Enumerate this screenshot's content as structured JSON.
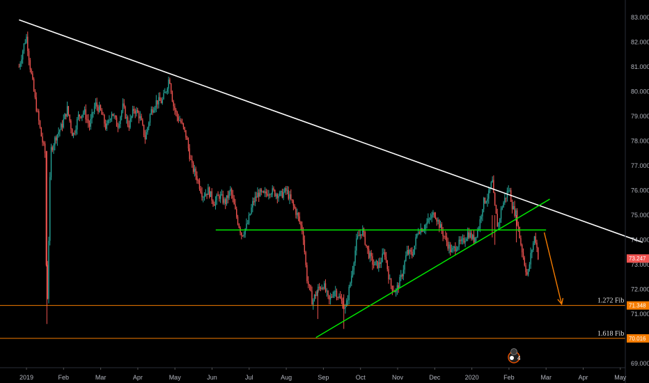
{
  "chart_data": {
    "type": "candlestick",
    "x_labels": [
      "2019",
      "Feb",
      "Mar",
      "Apr",
      "May",
      "Jun",
      "Jul",
      "Aug",
      "Sep",
      "Oct",
      "Nov",
      "Dec",
      "2020",
      "Feb",
      "Mar",
      "Apr",
      "May"
    ],
    "y_ticks": [
      "83.000",
      "82.000",
      "81.000",
      "80.000",
      "79.000",
      "78.000",
      "77.000",
      "76.000",
      "75.000",
      "74.000",
      "73.000",
      "72.000",
      "71.000",
      "70.000",
      "69.000"
    ],
    "y_range": [
      68.8,
      83.3
    ],
    "x_range": [
      0,
      16.6
    ],
    "price_path": [
      [
        -0.2,
        81.0
      ],
      [
        -0.05,
        82.0
      ],
      [
        0.0,
        82.2
      ],
      [
        0.1,
        81.0
      ],
      [
        0.25,
        79.5
      ],
      [
        0.4,
        78.2
      ],
      [
        0.5,
        77.5
      ],
      [
        0.55,
        70.6
      ],
      [
        0.65,
        77.6
      ],
      [
        0.8,
        78.2
      ],
      [
        0.95,
        78.6
      ],
      [
        1.1,
        79.3
      ],
      [
        1.25,
        78.2
      ],
      [
        1.4,
        79.0
      ],
      [
        1.55,
        79.2
      ],
      [
        1.7,
        78.6
      ],
      [
        1.85,
        79.5
      ],
      [
        2.0,
        79.2
      ],
      [
        2.15,
        78.5
      ],
      [
        2.3,
        79.2
      ],
      [
        2.45,
        78.6
      ],
      [
        2.6,
        79.4
      ],
      [
        2.75,
        78.6
      ],
      [
        2.9,
        79.3
      ],
      [
        3.05,
        79.0
      ],
      [
        3.2,
        78.1
      ],
      [
        3.35,
        79.2
      ],
      [
        3.5,
        79.6
      ],
      [
        3.65,
        79.6
      ],
      [
        3.75,
        80.0
      ],
      [
        3.85,
        80.6
      ],
      [
        3.95,
        79.5
      ],
      [
        4.05,
        79.0
      ],
      [
        4.15,
        78.8
      ],
      [
        4.3,
        78.2
      ],
      [
        4.45,
        77.0
      ],
      [
        4.6,
        76.5
      ],
      [
        4.75,
        75.8
      ],
      [
        4.9,
        76.0
      ],
      [
        5.05,
        75.5
      ],
      [
        5.2,
        75.8
      ],
      [
        5.35,
        75.5
      ],
      [
        5.5,
        76.0
      ],
      [
        5.65,
        75.0
      ],
      [
        5.8,
        74.2
      ],
      [
        5.95,
        74.6
      ],
      [
        6.1,
        75.5
      ],
      [
        6.25,
        75.9
      ],
      [
        6.4,
        75.8
      ],
      [
        6.55,
        76.0
      ],
      [
        6.7,
        75.9
      ],
      [
        6.85,
        75.8
      ],
      [
        7.0,
        76.0
      ],
      [
        7.15,
        75.5
      ],
      [
        7.3,
        75.0
      ],
      [
        7.45,
        74.3
      ],
      [
        7.55,
        72.5
      ],
      [
        7.7,
        71.5
      ],
      [
        7.85,
        72.0
      ],
      [
        8.0,
        72.2
      ],
      [
        8.15,
        71.5
      ],
      [
        8.3,
        72.0
      ],
      [
        8.45,
        71.6
      ],
      [
        8.6,
        71.2
      ],
      [
        8.75,
        72.5
      ],
      [
        8.9,
        74.0
      ],
      [
        9.05,
        74.4
      ],
      [
        9.2,
        73.5
      ],
      [
        9.35,
        73.0
      ],
      [
        9.5,
        73.0
      ],
      [
        9.65,
        73.5
      ],
      [
        9.8,
        72.2
      ],
      [
        9.95,
        71.9
      ],
      [
        10.1,
        72.5
      ],
      [
        10.25,
        73.5
      ],
      [
        10.4,
        73.4
      ],
      [
        10.55,
        74.4
      ],
      [
        10.7,
        74.5
      ],
      [
        10.85,
        74.8
      ],
      [
        11.0,
        75.1
      ],
      [
        11.15,
        74.5
      ],
      [
        11.3,
        74.0
      ],
      [
        11.45,
        73.5
      ],
      [
        11.6,
        73.8
      ],
      [
        11.75,
        73.9
      ],
      [
        11.9,
        74.3
      ],
      [
        12.05,
        74.0
      ],
      [
        12.2,
        74.6
      ],
      [
        12.3,
        75.5
      ],
      [
        12.45,
        75.8
      ],
      [
        12.55,
        76.4
      ],
      [
        12.6,
        75.5
      ],
      [
        12.7,
        74.5
      ],
      [
        12.8,
        75.3
      ],
      [
        12.9,
        75.7
      ],
      [
        13.0,
        76.1
      ],
      [
        13.1,
        75.3
      ],
      [
        13.2,
        75.0
      ],
      [
        13.3,
        74.0
      ],
      [
        13.4,
        73.2
      ],
      [
        13.5,
        72.5
      ],
      [
        13.6,
        73.5
      ],
      [
        13.7,
        74.2
      ],
      [
        13.8,
        73.2
      ]
    ],
    "annotations": {
      "fib_labels": [
        {
          "text": "1.272 Fib",
          "price": 71.348,
          "price_label": "71.348"
        },
        {
          "text": "1.618 Fib",
          "price": 70.016,
          "price_label": "70.016"
        }
      ],
      "current_price": {
        "price": 73.247,
        "label": "73.247"
      },
      "resistance_trendline": {
        "from": [
          -0.2,
          82.9
        ],
        "to": [
          16.6,
          73.9
        ],
        "color": "#ffffff"
      },
      "horizontal_support": {
        "price": 74.4,
        "x_from": 5.1,
        "x_to": 14.0,
        "color": "#00e600"
      },
      "rising_trendline": {
        "from": [
          7.8,
          70.05
        ],
        "to": [
          14.1,
          75.65
        ],
        "color": "#00e600"
      },
      "projection_arrow": {
        "from": [
          13.95,
          74.3
        ],
        "to": [
          14.42,
          71.4
        ],
        "color": "#f57c00"
      }
    },
    "colors": {
      "up": "#26a69a",
      "down": "#ef5350",
      "fib_line": "#f57c00",
      "background": "#000000",
      "axis_text": "#b2b5be"
    },
    "grid": false
  },
  "events_badge": {
    "icon": "calendar-events-icon",
    "count": "4"
  }
}
